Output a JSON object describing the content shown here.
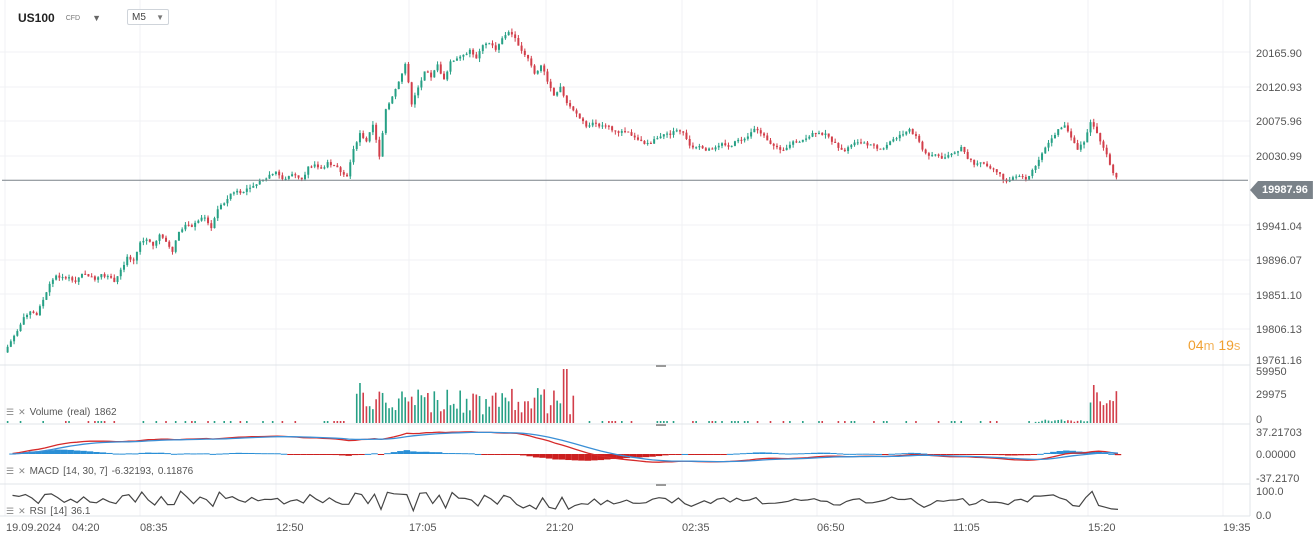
{
  "toolbar": {
    "symbol": "US100",
    "symbol_type": "CFD",
    "timeframe": "M5"
  },
  "price_axis": {
    "ticks": [
      "20165.90",
      "20120.93",
      "20075.96",
      "20030.99",
      "19941.04",
      "19896.07",
      "19851.10",
      "19806.13",
      "19761.16"
    ],
    "current_price": "19987.96"
  },
  "countdown": {
    "minutes": "04",
    "min_unit": "m",
    "seconds": "19",
    "sec_unit": "s"
  },
  "volume": {
    "label": "Volume",
    "mode": "(real)",
    "value": "1862",
    "ticks": [
      "59950",
      "29975",
      "0"
    ]
  },
  "macd": {
    "label": "MACD",
    "params": "[14, 30, 7]",
    "value1": "-6.32193,",
    "value2": "0.11876",
    "ticks": [
      "37.21703",
      "0.00000",
      "-37.2170"
    ]
  },
  "rsi": {
    "label": "RSI",
    "params": "[14]",
    "value": "36.1",
    "ticks": [
      "100.0",
      "0.0"
    ]
  },
  "time_axis": {
    "date": "19.09.2024",
    "labels": [
      "04:20",
      "08:35",
      "12:50",
      "17:05",
      "21:20",
      "02:35",
      "06:50",
      "11:05",
      "15:20",
      "19:35"
    ]
  },
  "colors": {
    "up": "#26a085",
    "down": "#d23e4a",
    "price_line": "#7a8289",
    "macd_line": "#d62a2a",
    "signal_line": "#3a8fd6",
    "hist_pos": "#2a8fd6",
    "hist_neg": "#cc1f1f",
    "rsi_line": "#444444",
    "countdown": "#f0a030"
  },
  "chart_data": {
    "type": "candlestick",
    "y_range": [
      19750,
      20200
    ],
    "current_price": 19987.96,
    "close_series": [
      19760,
      19775,
      19790,
      19805,
      19815,
      19810,
      19830,
      19850,
      19862,
      19858,
      19860,
      19855,
      19865,
      19862,
      19858,
      19865,
      19860,
      19855,
      19870,
      19885,
      19880,
      19905,
      19910,
      19902,
      19915,
      19905,
      19895,
      19920,
      19930,
      19925,
      19935,
      19940,
      19925,
      19950,
      19958,
      19970,
      19975,
      19972,
      19980,
      19982,
      19988,
      19995,
      20000,
      19990,
      19992,
      19996,
      19990,
      20005,
      20008,
      20004,
      20010,
      20006,
      20000,
      19994,
      20030,
      20050,
      20040,
      20060,
      20020,
      20080,
      20100,
      20120,
      20140,
      20090,
      20110,
      20130,
      20125,
      20140,
      20120,
      20145,
      20150,
      20155,
      20160,
      20148,
      20165,
      20170,
      20162,
      20175,
      20185,
      20178,
      20160,
      20150,
      20130,
      20140,
      20120,
      20100,
      20110,
      20090,
      20080,
      20070,
      20060,
      20065,
      20058,
      20062,
      20055,
      20050,
      20052,
      20048,
      20040,
      20035,
      20038,
      20045,
      20050,
      20048,
      20055,
      20050,
      20035,
      20030,
      20032,
      20028,
      20030,
      20035,
      20032,
      20038,
      20042,
      20045,
      20055,
      20050,
      20042,
      20035,
      20028,
      20030,
      20038,
      20040,
      20045,
      20050,
      20052,
      20048,
      20040,
      20032,
      20028,
      20035,
      20040,
      20038,
      20034,
      20030,
      20030,
      20040,
      20045,
      20050,
      20055,
      20045,
      20030,
      20020,
      20022,
      20018,
      20020,
      20024,
      20030,
      20018,
      20010,
      20012,
      20008,
      20002,
      19998,
      19985,
      19990,
      19992,
      19988,
      20000,
      20015,
      20030,
      20045,
      20055,
      20060,
      20045,
      20030,
      20040,
      20065,
      20050,
      20030,
      20010,
      19990
    ],
    "series": [
      {
        "name": "Volume",
        "ylim": [
          0,
          59950
        ]
      },
      {
        "name": "MACD",
        "params": [
          14,
          30,
          7
        ],
        "values": [
          -6.32193,
          0.11876
        ],
        "ylim": [
          -37.217,
          37.21703
        ]
      },
      {
        "name": "RSI",
        "params": [
          14
        ],
        "value": 36.1,
        "ylim": [
          0,
          100
        ]
      }
    ]
  }
}
